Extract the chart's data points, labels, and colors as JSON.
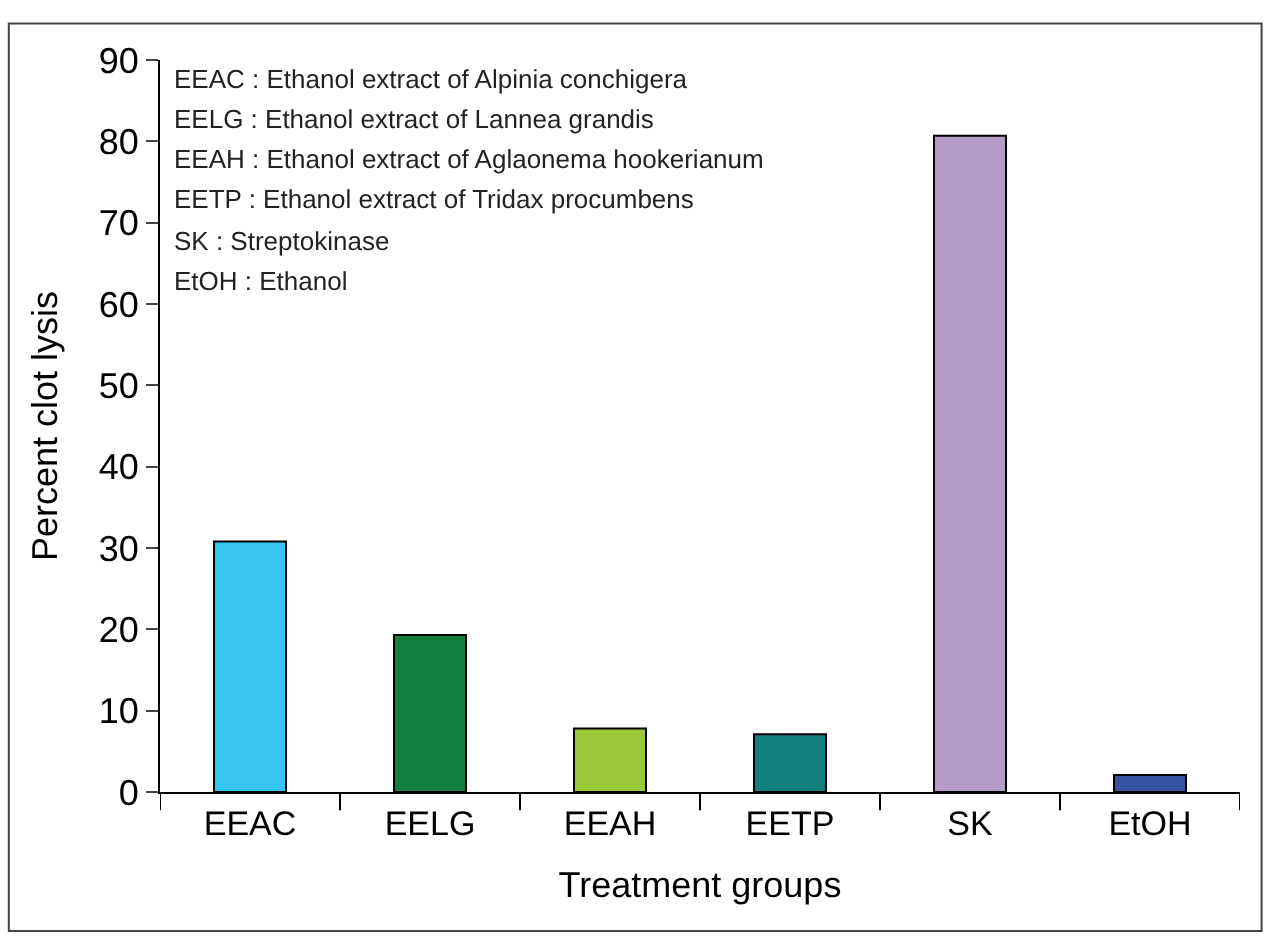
{
  "chart_data": {
    "type": "bar",
    "xlabel": "Treatment groups",
    "ylabel": "Percent clot lysis",
    "categories": [
      "EEAC",
      "EELG",
      "EEAH",
      "EETP",
      "SK",
      "EtOH"
    ],
    "values": [
      30.8,
      19.3,
      7.8,
      7.1,
      80.7,
      2.1
    ],
    "colors": [
      "#36c5f0",
      "#13803f",
      "#9bc93c",
      "#138080",
      "#b69ac8",
      "#3552a5"
    ],
    "ylim": [
      0,
      90
    ],
    "yticks": [
      0,
      10,
      20,
      30,
      40,
      50,
      60,
      70,
      80,
      90
    ],
    "annotations": [
      "EEAC : Ethanol extract of Alpinia conchigera",
      "EELG : Ethanol extract of Lannea grandis",
      "EEAH : Ethanol extract of Aglaonema hookerianum",
      "EETP : Ethanol extract of Tridax procumbens",
      "SK : Streptokinase",
      "EtOH : Ethanol"
    ]
  }
}
